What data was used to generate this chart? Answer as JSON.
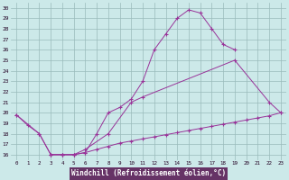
{
  "xlabel": "Windchill (Refroidissement éolien,°C)",
  "bg_color": "#cce9e9",
  "grid_color": "#99bbbb",
  "line_color": "#993399",
  "xlabel_bg": "#663366",
  "xlim": [
    -0.5,
    23.5
  ],
  "ylim": [
    15.5,
    30.5
  ],
  "xticks": [
    0,
    1,
    2,
    3,
    4,
    5,
    6,
    7,
    8,
    9,
    10,
    11,
    12,
    13,
    14,
    15,
    16,
    17,
    18,
    19,
    20,
    21,
    22,
    23
  ],
  "yticks": [
    16,
    17,
    18,
    19,
    20,
    21,
    22,
    23,
    24,
    25,
    26,
    27,
    28,
    29,
    30
  ],
  "curve1_x": [
    0,
    1,
    2,
    3,
    4,
    5,
    6,
    7,
    8,
    9,
    10,
    11,
    12,
    13,
    14,
    15,
    16,
    17,
    18,
    19
  ],
  "curve1_y": [
    19.8,
    18.8,
    18.0,
    16.0,
    16.0,
    16.0,
    16.2,
    18.0,
    20.0,
    20.5,
    21.3,
    23.0,
    26.0,
    27.5,
    29.0,
    29.8,
    29.5,
    28.0,
    26.5,
    26.0
  ],
  "curve2_x": [
    0,
    2,
    3,
    4,
    5,
    6,
    8,
    10,
    11,
    19,
    22,
    23
  ],
  "curve2_y": [
    19.8,
    18.0,
    16.0,
    16.0,
    16.0,
    16.5,
    18.0,
    21.0,
    21.5,
    25.0,
    21.0,
    20.0
  ],
  "curve3_x": [
    3,
    4,
    5,
    6,
    7,
    8,
    9,
    10,
    11,
    12,
    13,
    14,
    15,
    16,
    17,
    18,
    19,
    20,
    21,
    22,
    23
  ],
  "curve3_y": [
    16.0,
    16.0,
    16.0,
    16.2,
    16.5,
    16.8,
    17.1,
    17.3,
    17.5,
    17.7,
    17.9,
    18.1,
    18.3,
    18.5,
    18.7,
    18.9,
    19.1,
    19.3,
    19.5,
    19.7,
    20.0
  ]
}
